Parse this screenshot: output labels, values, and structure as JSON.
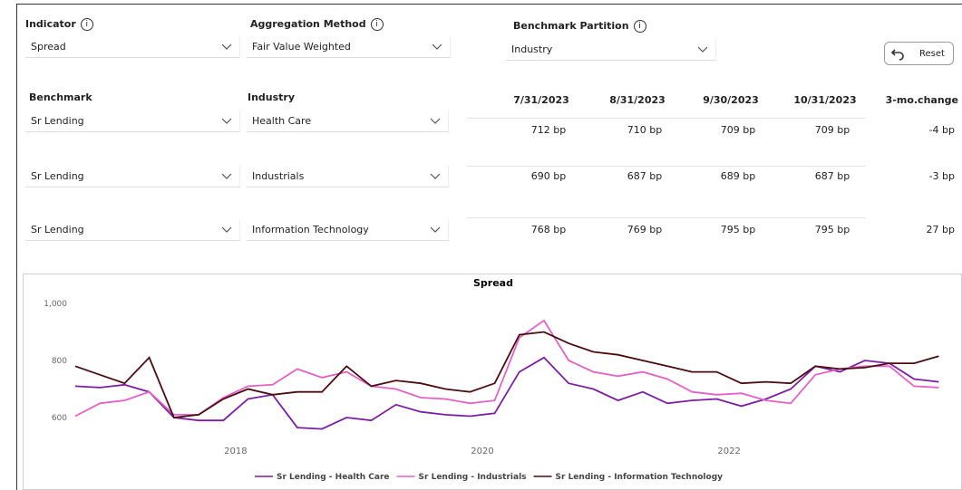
{
  "filters": [
    {
      "label": "Indicator",
      "value": "Spread"
    },
    {
      "label": "Aggregation Method",
      "value": "Fair Value Weighted"
    },
    {
      "label": "Benchmark Partition",
      "value": "Industry"
    }
  ],
  "reset": "Reset",
  "table": {
    "columns": [
      "Benchmark",
      "Industry",
      "7/31/2023",
      "8/31/2023",
      "9/30/2023",
      "10/31/2023",
      "3-mo.change"
    ],
    "rows": [
      [
        "Sr Lending",
        "Health Care",
        "712 bp",
        "710 bp",
        "709 bp",
        "709 bp",
        "-4 bp"
      ],
      [
        "Sr Lending",
        "Industrials",
        "690 bp",
        "687 bp",
        "689 bp",
        "687 bp",
        "-3 bp"
      ],
      [
        "Sr Lending",
        "Information Technology",
        "768 bp",
        "769 bp",
        "795 bp",
        "795 bp",
        "27 bp"
      ]
    ]
  },
  "chart_data": {
    "type": "line",
    "title": "Spread",
    "x": [
      2016.7,
      2016.9,
      2017.1,
      2017.3,
      2017.5,
      2017.7,
      2017.9,
      2018.1,
      2018.3,
      2018.5,
      2018.7,
      2018.9,
      2019.1,
      2019.3,
      2019.5,
      2019.7,
      2019.9,
      2020.1,
      2020.3,
      2020.5,
      2020.7,
      2020.9,
      2021.1,
      2021.3,
      2021.5,
      2021.7,
      2021.9,
      2022.1,
      2022.3,
      2022.5,
      2022.7,
      2022.9,
      2023.1,
      2023.3,
      2023.5,
      2023.7
    ],
    "xlim": [
      2016.7,
      2023.8
    ],
    "xticks": [
      2018,
      2020,
      2022
    ],
    "ylim": [
      510,
      1030
    ],
    "yticks": [
      600,
      800,
      {
        "value": 1000,
        "label": "1,000"
      }
    ],
    "grid": false,
    "series": [
      {
        "name": "Sr Lending - Health Care",
        "color": "#7b1fa2",
        "values": [
          710,
          705,
          715,
          690,
          600,
          590,
          590,
          665,
          680,
          565,
          560,
          600,
          590,
          645,
          620,
          610,
          605,
          615,
          760,
          810,
          720,
          700,
          660,
          690,
          650,
          660,
          665,
          640,
          665,
          700,
          780,
          760,
          800,
          790,
          735,
          725
        ]
      },
      {
        "name": "Sr Lending - Industrials",
        "color": "#e362c6",
        "values": [
          605,
          650,
          660,
          690,
          610,
          610,
          670,
          710,
          715,
          770,
          740,
          760,
          710,
          700,
          670,
          665,
          650,
          660,
          880,
          940,
          800,
          760,
          745,
          760,
          735,
          690,
          680,
          685,
          660,
          650,
          750,
          770,
          780,
          780,
          710,
          705
        ]
      },
      {
        "name": "Sr Lending - Information Technology",
        "color": "#4a0d12",
        "values": [
          780,
          750,
          720,
          810,
          600,
          610,
          665,
          700,
          680,
          690,
          690,
          780,
          710,
          730,
          720,
          700,
          690,
          720,
          890,
          900,
          860,
          830,
          820,
          800,
          780,
          760,
          760,
          720,
          725,
          720,
          780,
          770,
          775,
          790,
          790,
          815
        ]
      }
    ]
  }
}
